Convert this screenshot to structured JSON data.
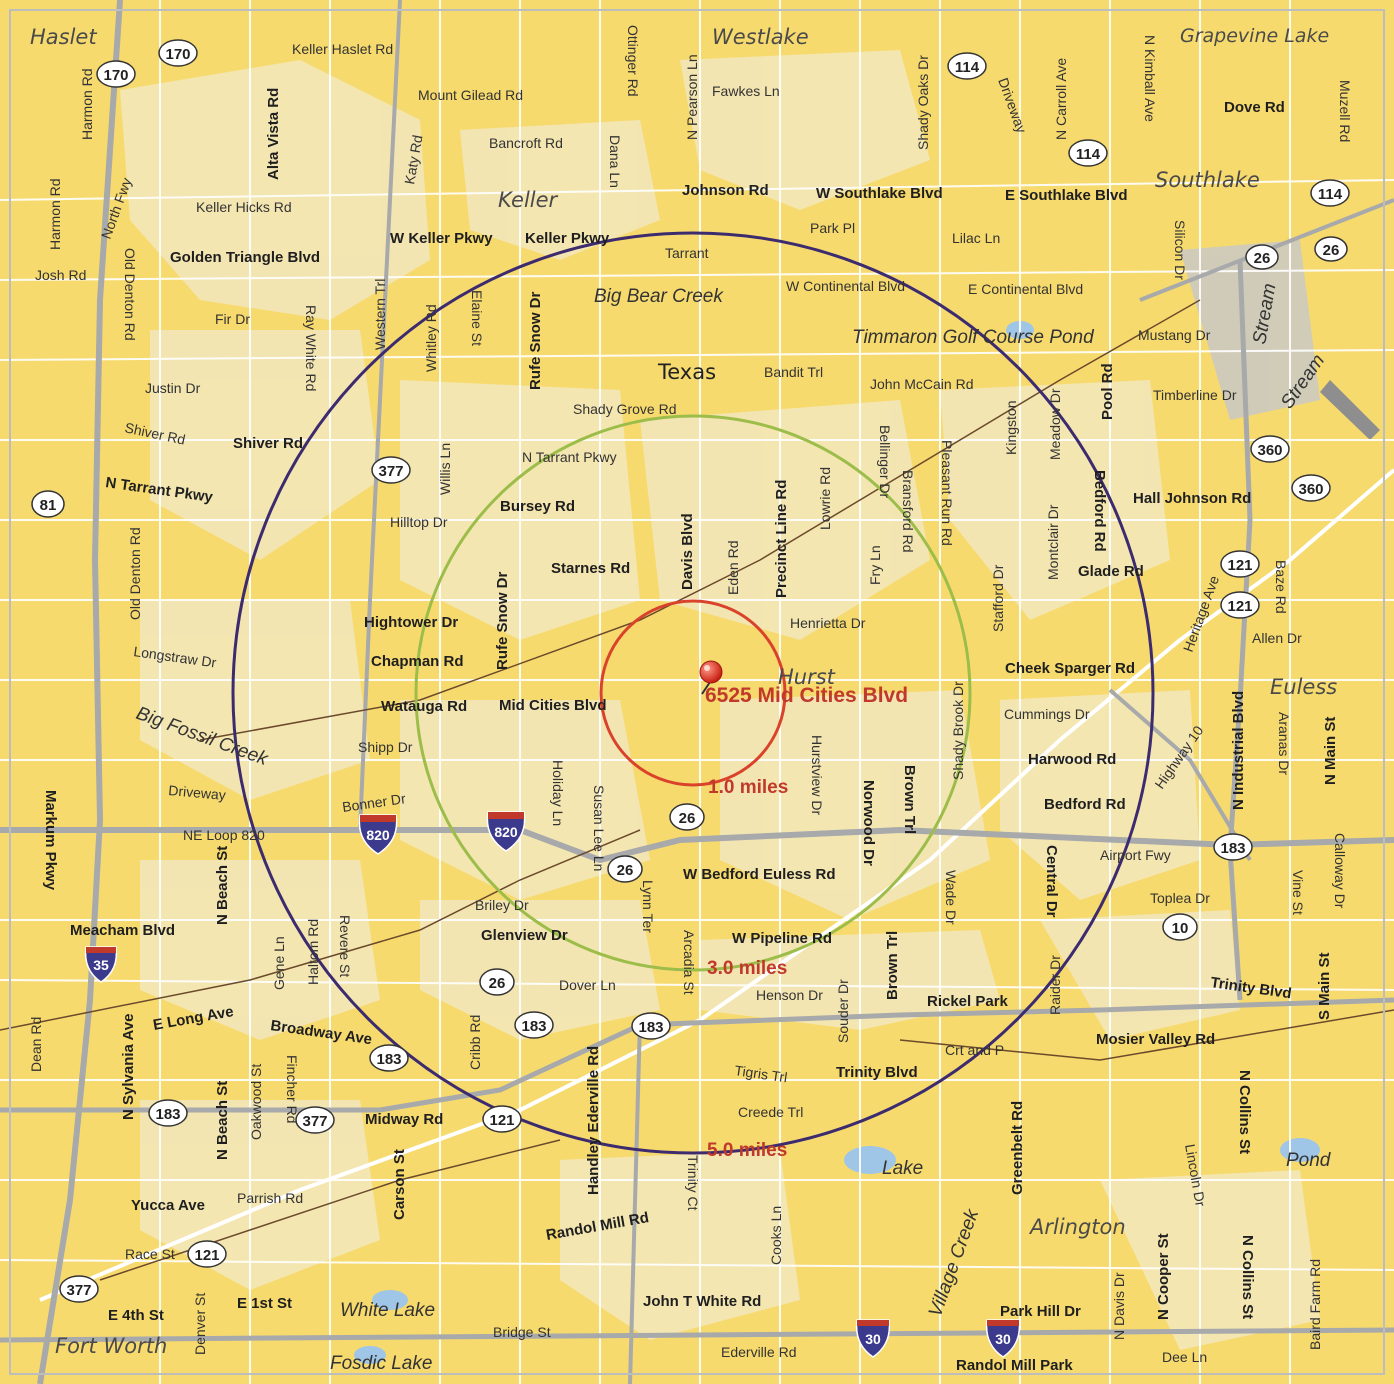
{
  "colors": {
    "land": "#f7da6e",
    "urban": "#f3e7bd",
    "road": "#ffffff",
    "freeway": "#a7a9ab",
    "outer_ring": "#3c2b6e",
    "middle_ring": "#9dbd4a",
    "inner_ring": "#d9432b",
    "marker": "#e23a2a"
  },
  "marker": {
    "address": "6525 Mid Cities Blvd"
  },
  "rings": [
    {
      "label": "1.0 miles",
      "miles": 1.0
    },
    {
      "label": "3.0 miles",
      "miles": 3.0
    },
    {
      "label": "5.0 miles",
      "miles": 5.0
    }
  ],
  "places": [
    "Haslet",
    "Westlake",
    "Grapevine Lake",
    "Keller",
    "Southlake",
    "Texas",
    "Hurst",
    "Euless",
    "Arlington",
    "Fort Worth"
  ],
  "water_labels": [
    "Big Bear Creek",
    "Timmaron Golf Course Pond",
    "Big Fossil Creek",
    "Stream",
    "Stream",
    "Lake",
    "Village Creek",
    "White Lake",
    "Fosdic Lake",
    "Pond"
  ],
  "street_labels": [
    "Keller Haslet Rd",
    "Mount Gilead Rd",
    "Bancroft Rd",
    "Ottinger Rd",
    "Dana Ln",
    "N Pearson Ln",
    "Fawkes Ln",
    "Shady Oaks Dr",
    "Driveway",
    "N Carroll Ave",
    "N Kimball Ave",
    "Dove Rd",
    "Muzell Rd",
    "Harmon Rd",
    "Harmon Rd",
    "North Fwy",
    "Alta Vista Rd",
    "Katy Rd",
    "Keller Hicks Rd",
    "Johnson Rd",
    "W Southlake Blvd",
    "E Southlake Blvd",
    "Golden Triangle Blvd",
    "W Keller Pkwy",
    "Keller Pkwy",
    "Tarrant",
    "Park Pl",
    "Lilac Ln",
    "Silicon Dr",
    "Josh Rd",
    "Old Denton Rd",
    "Western Trl",
    "Whitley Rd",
    "Elaine St",
    "Rufe Snow Dr",
    "W Continental Blvd",
    "E Continental Blvd",
    "Fir Dr",
    "Ray White Rd",
    "Mustang Dr",
    "Justin Dr",
    "Bandit Trl",
    "John McCain Rd",
    "Timberline Dr",
    "Pool Rd",
    "Shiver Rd",
    "Shiver Rd",
    "Shady Grove Rd",
    "Willis Ln",
    "N Tarrant Pkwy",
    "N Tarrant Pkwy",
    "Bursey Rd",
    "Davis Blvd",
    "Eden Rd",
    "Precinct Line Rd",
    "Lowrie Rd",
    "Fry Ln",
    "Bellinger Dr",
    "Bransford Rd",
    "Pleasant Run Rd",
    "Kingston",
    "Meadow Dr",
    "Bedford Rd",
    "Hall Johnson Rd",
    "Hilltop Dr",
    "Old Denton Rd",
    "Stafford Dr",
    "Montclair Dr",
    "Glade Rd",
    "Heritage Ave",
    "Baze Rd",
    "Starnes Rd",
    "Rufe Snow Dr",
    "Hightower Dr",
    "Henrietta Dr",
    "Allen Dr",
    "Chapman Rd",
    "Longstraw Dr",
    "Cheek Sparger Rd",
    "Watauga Rd",
    "Mid Cities Blvd",
    "Shady Brook Dr",
    "Cummings Dr",
    "Holiday Ln",
    "Shipp Dr",
    "Harwood Rd",
    "Susan Lee Ln",
    "Hurstview Dr",
    "Norwood Dr",
    "Brown Trl",
    "Bedford Rd",
    "Highway 10",
    "N Industrial Blvd",
    "Aranas Dr",
    "N Main St",
    "Driveway",
    "Bonner Dr",
    "Airport Fwy",
    "NE Loop 820",
    "Central Dr",
    "Calloway Dr",
    "Markum Pkwy",
    "N Beach St",
    "W Bedford Euless Rd",
    "Toplea Dr",
    "Vine St",
    "Briley Dr",
    "Meacham Blvd",
    "Glenview Dr",
    "W Pipeline Rd",
    "Wade Dr",
    "Lynn Ter",
    "Arcadia St",
    "Gene Ln",
    "Haltom Rd",
    "Revere St",
    "Dover Ln",
    "Henson Dr",
    "Brown Trl",
    "Souder Dr",
    "Rickel Park",
    "Raider Dr",
    "Trinity Blvd",
    "Dean Rd",
    "N Sylvania Ave",
    "E Long Ave",
    "Broadway Ave",
    "Cribb Rd",
    "Mosier Valley Rd",
    "S Main St",
    "Crt and P",
    "N Beach St",
    "Oakwood St",
    "Fincher Rd",
    "Tigris Trl",
    "Trinity Blvd",
    "Midway Rd",
    "Carson St",
    "Handley Ederville Rd",
    "Trinity Ct",
    "Creede Trl",
    "Greenbelt Rd",
    "N Collins St",
    "Lincoln Dr",
    "Yucca Ave",
    "Parrish Rd",
    "Race St",
    "Randol Mill Rd",
    "Cooks Ln",
    "E 4th St",
    "E 1st St",
    "Denver St",
    "John T White Rd",
    "Park Hill Dr",
    "N Davis Dr",
    "N Cooper St",
    "N Collins St",
    "Baird Farm Rd",
    "Bridge St",
    "Ederville Rd",
    "Randol Mill Park",
    "Dee Ln"
  ],
  "route_shields": [
    "170",
    "170",
    "114",
    "114",
    "114",
    "26",
    "26",
    "360",
    "360",
    "377",
    "81",
    "121",
    "121",
    "26",
    "26",
    "183",
    "10",
    "26",
    "183",
    "183",
    "183",
    "183",
    "377",
    "121",
    "121",
    "377"
  ],
  "interstate_shields": [
    "820",
    "820",
    "35",
    "30",
    "30"
  ]
}
